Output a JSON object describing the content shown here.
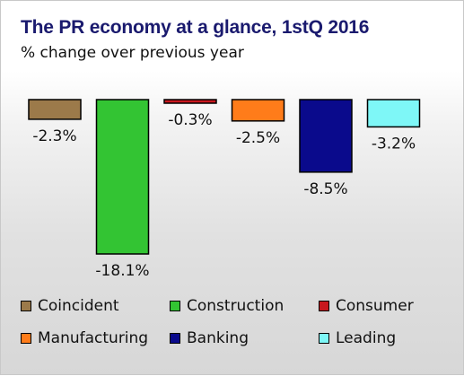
{
  "chart_data": {
    "type": "bar",
    "title": "The PR economy at a glance, 1stQ 2016",
    "subtitle": "% change over previous year",
    "categories": [
      "Coincident",
      "Construction",
      "Consumer",
      "Manufacturing",
      "Banking",
      "Leading"
    ],
    "values": [
      -2.3,
      -18.1,
      -0.3,
      -2.5,
      -8.5,
      -3.2
    ],
    "value_labels": [
      "-2.3%",
      "-18.1%",
      "-0.3%",
      "-2.5%",
      "-8.5%",
      "-3.2%"
    ],
    "colors": [
      "#9c7a4a",
      "#33c433",
      "#c8181e",
      "#ff7c1a",
      "#0a0a8c",
      "#7ef7f7"
    ],
    "ylim": [
      -18.1,
      0
    ],
    "grid": false,
    "legend_position": "bottom"
  }
}
